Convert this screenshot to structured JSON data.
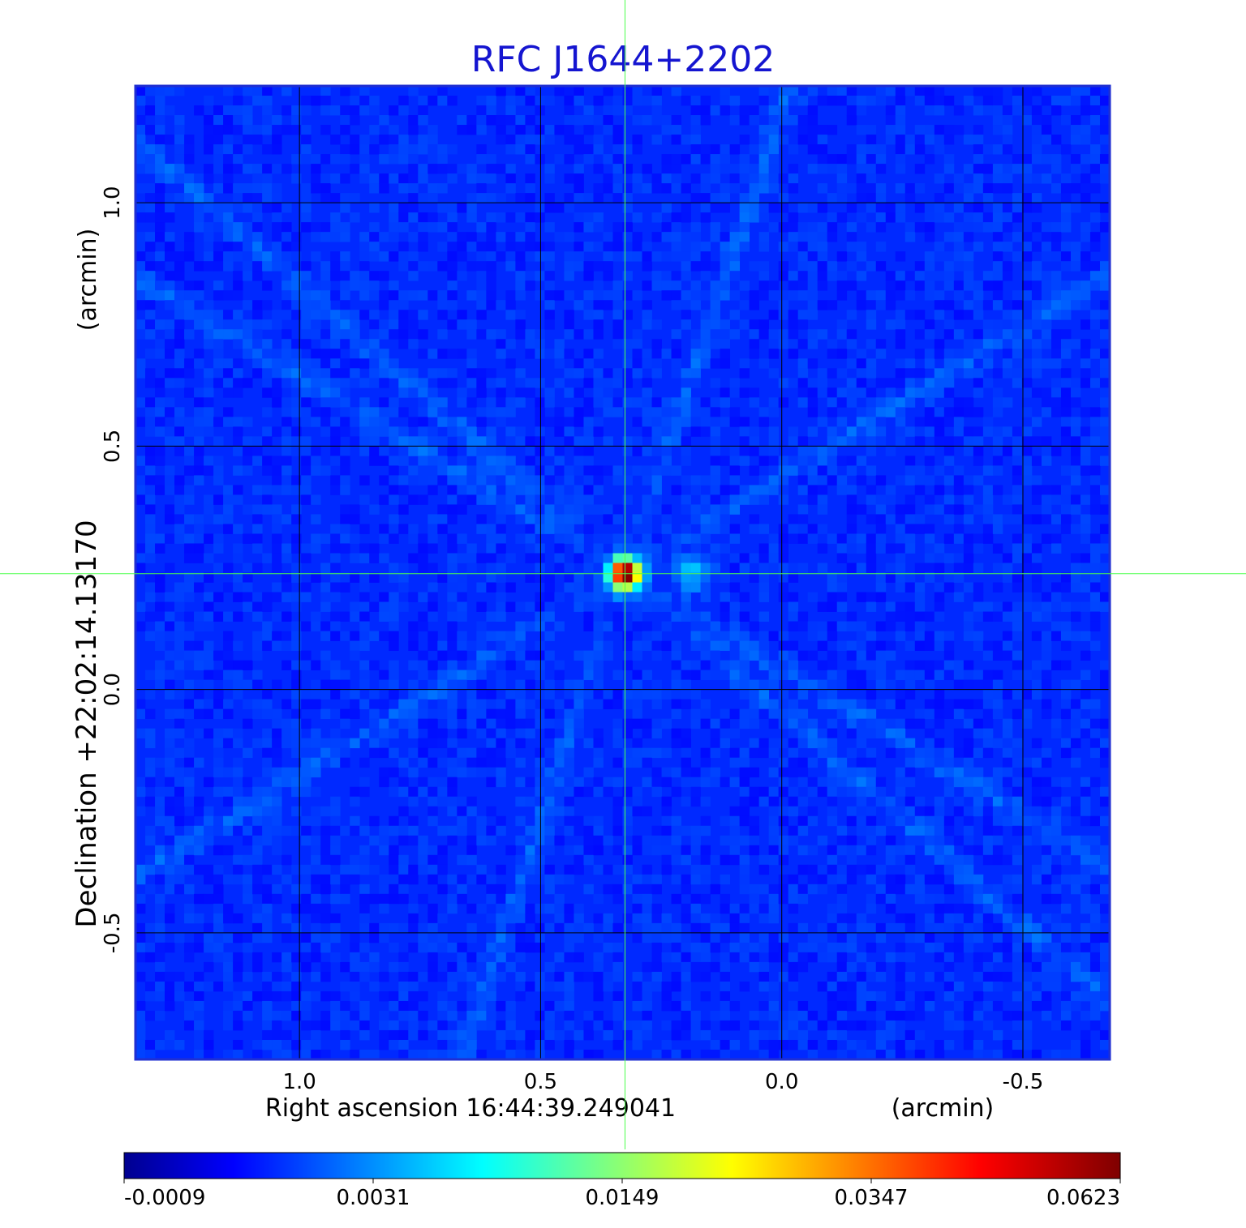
{
  "chart_data": {
    "type": "heatmap",
    "title": "RFC J1644+2202",
    "xlabel": "Right ascension  16:44:39.249041",
    "xunit": "(arcmin)",
    "ylabel": "Declination  +22:02:14.13170",
    "yunit": "(arcmin)",
    "xlim": [
      1.34,
      -0.68
    ],
    "ylim": [
      -0.76,
      1.24
    ],
    "xticks": [
      "1.0",
      "0.5",
      "0.0",
      "-0.5"
    ],
    "xtick_values": [
      1.0,
      0.5,
      0.0,
      -0.5
    ],
    "yticks": [
      "-0.5",
      "0.0",
      "0.5",
      "1.0"
    ],
    "ytick_values": [
      -0.5,
      0.0,
      0.5,
      1.0
    ],
    "grid": true,
    "crosshair": {
      "x": 0.325,
      "y": 0.238
    },
    "colormap": "jet",
    "colorbar": {
      "ticks": [
        "-0.0009",
        "0.0031",
        "0.0149",
        "0.0347",
        "0.0623"
      ]
    },
    "source_peak": {
      "x": 0.325,
      "y": 0.238,
      "value": 0.0623
    },
    "secondary_component": {
      "x": 0.19,
      "y": 0.24,
      "value": 0.006
    },
    "background_level": 0.0005
  },
  "colors": {
    "title": "#1515d0",
    "grid": "#000000",
    "crosshair": "#4cff4c",
    "frame": "#1f2fd2"
  }
}
